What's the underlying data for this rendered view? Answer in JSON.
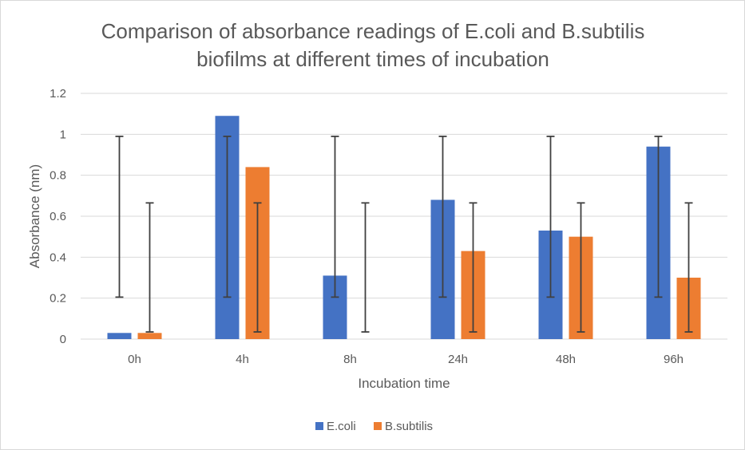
{
  "chart_data": {
    "type": "bar",
    "title_lines": [
      "Comparison of absorbance readings of E.coli and B.subtilis",
      "biofilms at different times of incubation"
    ],
    "xlabel": "Incubation time",
    "ylabel": "Absorbance (nm)",
    "categories": [
      "0h",
      "4h",
      "8h",
      "24h",
      "48h",
      "96h"
    ],
    "ylim": [
      0,
      1.2
    ],
    "yticks": [
      0,
      0.2,
      0.4,
      0.6,
      0.8,
      1,
      1.2
    ],
    "ytick_labels": [
      "0",
      "0.2",
      "0.4",
      "0.6",
      "0.8",
      "1",
      "1.2"
    ],
    "grid": true,
    "legend_position": "bottom",
    "series": [
      {
        "name": "E.coli",
        "color": "#4472c4",
        "values": [
          0.03,
          1.09,
          0.31,
          0.68,
          0.53,
          0.94
        ],
        "error_bars": [
          [
            0.205,
            0.99
          ],
          [
            0.205,
            0.99
          ],
          [
            0.205,
            0.99
          ],
          [
            0.205,
            0.99
          ],
          [
            0.205,
            0.99
          ],
          [
            0.205,
            0.99
          ]
        ]
      },
      {
        "name": "B.subtilis",
        "color": "#ed7d31",
        "values": [
          0.03,
          0.84,
          0.0,
          0.43,
          0.5,
          0.3
        ],
        "error_bars": [
          [
            0.035,
            0.665
          ],
          [
            0.035,
            0.665
          ],
          [
            0.035,
            0.665
          ],
          [
            0.035,
            0.665
          ],
          [
            0.035,
            0.665
          ],
          [
            0.035,
            0.665
          ]
        ]
      }
    ]
  }
}
